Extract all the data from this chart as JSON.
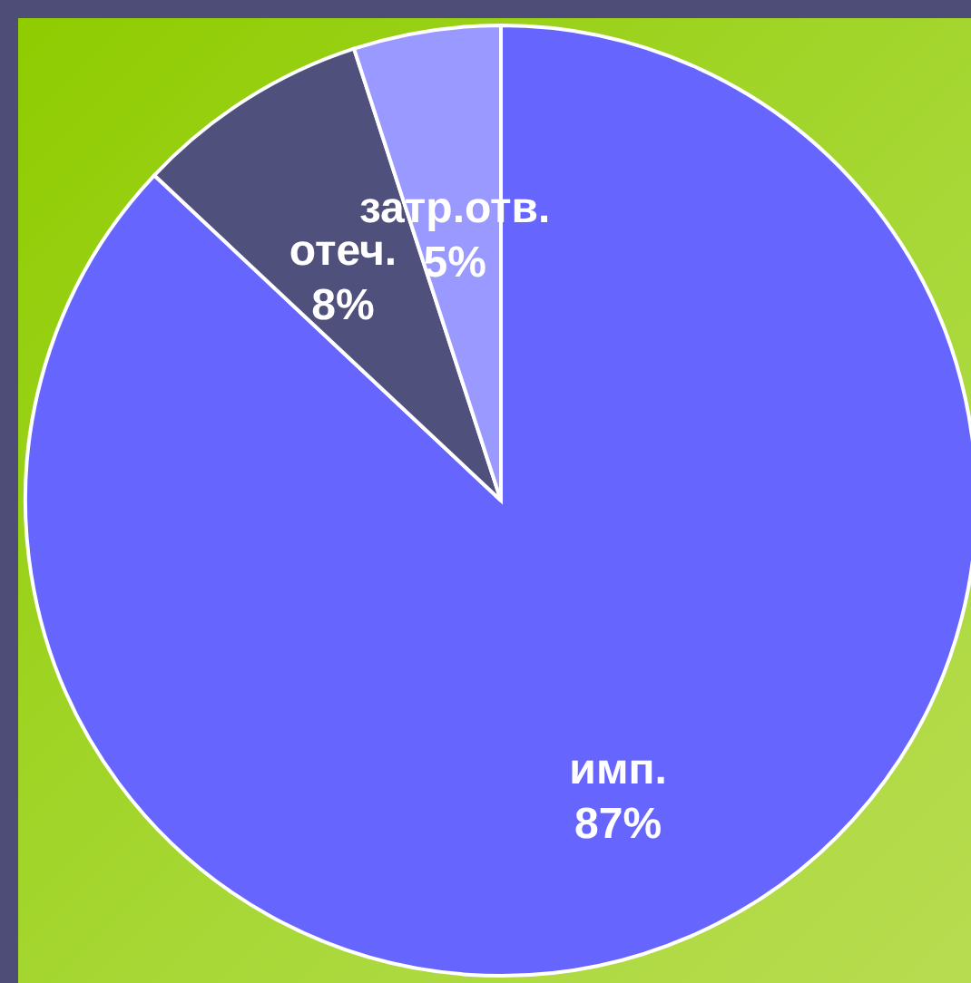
{
  "chart_data": {
    "type": "pie",
    "categories": [
      "имп.",
      "отеч.",
      "затр.отв."
    ],
    "values": [
      87,
      8,
      5
    ],
    "colors": [
      "#6666ff",
      "#50507c",
      "#9999ff"
    ],
    "value_labels": [
      "87%",
      "8%",
      "5%"
    ],
    "legend": false
  }
}
